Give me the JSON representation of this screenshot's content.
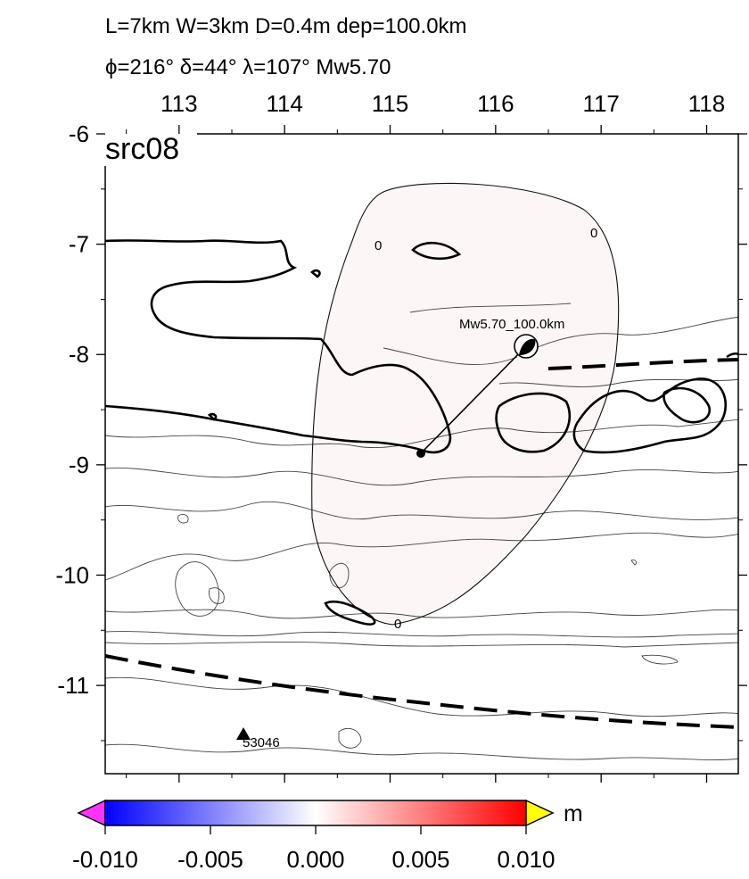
{
  "header": {
    "line1": "L=7km W=3km D=0.4m dep=100.0km",
    "line2": "ϕ=216° δ=44° λ=107° Mw5.70"
  },
  "panel": {
    "label": "src08",
    "lon_range": [
      112.3,
      118.3
    ],
    "lat_range": [
      -11.8,
      -6.0
    ],
    "lon_ticks": [
      "113",
      "114",
      "115",
      "116",
      "117",
      "118"
    ],
    "lat_ticks": [
      "-6",
      "-7",
      "-8",
      "-9",
      "-10",
      "-11"
    ],
    "contour_zero_label": "0",
    "event_label": "Mw5.70_100.0km",
    "station_label": "53046"
  },
  "colorbar": {
    "unit": "m",
    "min": -0.01,
    "max": 0.01,
    "tick_labels": [
      "-0.010",
      "-0.005",
      "0.000",
      "0.005",
      "0.010"
    ],
    "low_end_color": "#ff33ff",
    "low_color": "#0000ff",
    "mid_color": "#ffffff",
    "high_color": "#ff0000",
    "high_end_color": "#ffff00"
  }
}
